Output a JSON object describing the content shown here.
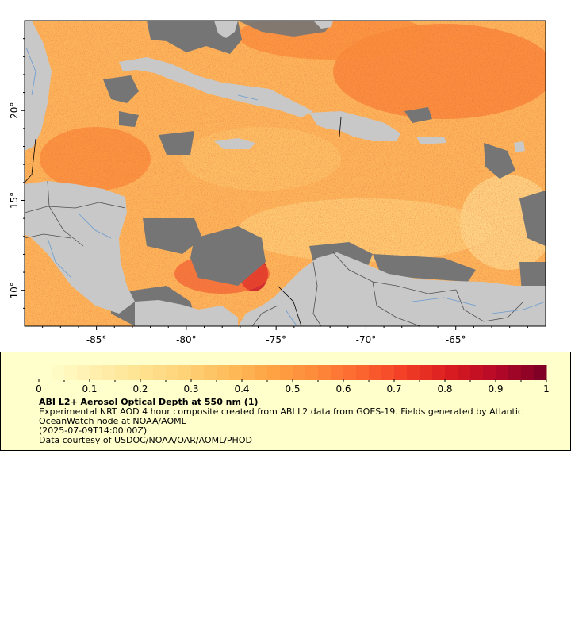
{
  "map": {
    "lon_range": [
      -89,
      -60
    ],
    "lat_range": [
      8,
      25
    ],
    "x_ticks": [
      {
        "value": -85,
        "label": "-85°"
      },
      {
        "value": -80,
        "label": "-80°"
      },
      {
        "value": -75,
        "label": "-75°"
      },
      {
        "value": -70,
        "label": "-70°"
      },
      {
        "value": -65,
        "label": "-65°"
      }
    ],
    "y_ticks": [
      {
        "value": 20,
        "label": "20°"
      },
      {
        "value": 15,
        "label": "15°"
      },
      {
        "value": 10,
        "label": "10°"
      }
    ],
    "colors": {
      "land": "#c8c8c8",
      "nodata": "#757575",
      "rivers": "#6a9bd1",
      "borders": "#505050"
    }
  },
  "legend": {
    "tick_labels": [
      "0",
      "0.1",
      "0.2",
      "0.3",
      "0.4",
      "0.5",
      "0.6",
      "0.7",
      "0.8",
      "0.9",
      "1"
    ],
    "colors": [
      "#ffffcc",
      "#fff0b0",
      "#fee494",
      "#fed47a",
      "#febe5c",
      "#fea444",
      "#fd8a3a",
      "#fc6630",
      "#f23d26",
      "#d81c20",
      "#b70827",
      "#800026"
    ],
    "title": "ABI L2+ Aerosol Optical Depth at 550 nm (1)",
    "description": "Experimental NRT AOD 4 hour composite created from ABI L2 data from GOES-19. Fields generated by Atlantic OceanWatch node at NOAA/AOML",
    "timestamp": "(2025-07-09T14:00:00Z)",
    "credit": "Data courtesy of USDOC/NOAA/OAR/AOML/PHOD"
  }
}
